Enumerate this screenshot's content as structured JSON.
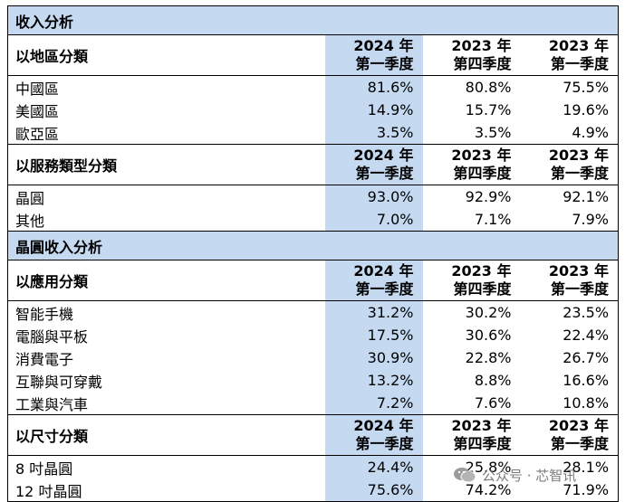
{
  "sections": [
    {
      "title": "收入分析",
      "groups": [
        {
          "label": "以地區分類",
          "col_headers": [
            [
              "2024 年",
              "第一季度"
            ],
            [
              "2023 年",
              "第四季度"
            ],
            [
              "2023 年",
              "第一季度"
            ]
          ],
          "rows": [
            {
              "label": "中國區",
              "values": [
                "81.6%",
                "80.8%",
                "75.5%"
              ]
            },
            {
              "label": "美國區",
              "values": [
                "14.9%",
                "15.7%",
                "19.6%"
              ]
            },
            {
              "label": "歐亞區",
              "values": [
                "3.5%",
                "3.5%",
                "4.9%"
              ]
            }
          ]
        },
        {
          "label": "以服務類型分類",
          "col_headers": [
            [
              "2024 年",
              "第一季度"
            ],
            [
              "2023 年",
              "第四季度"
            ],
            [
              "2023 年",
              "第一季度"
            ]
          ],
          "rows": [
            {
              "label": "晶圓",
              "values": [
                "93.0%",
                "92.9%",
                "92.1%"
              ]
            },
            {
              "label": "其他",
              "values": [
                "7.0%",
                "7.1%",
                "7.9%"
              ]
            }
          ]
        }
      ]
    },
    {
      "title": "晶圓收入分析",
      "groups": [
        {
          "label": "以應用分類",
          "col_headers": [
            [
              "2024 年",
              "第一季度"
            ],
            [
              "2023 年",
              "第四季度"
            ],
            [
              "2023 年",
              "第一季度"
            ]
          ],
          "rows": [
            {
              "label": "智能手機",
              "values": [
                "31.2%",
                "30.2%",
                "23.5%"
              ]
            },
            {
              "label": "電腦與平板",
              "values": [
                "17.5%",
                "30.6%",
                "22.4%"
              ]
            },
            {
              "label": "消費電子",
              "values": [
                "30.9%",
                "22.8%",
                "26.7%"
              ]
            },
            {
              "label": "互聯與可穿戴",
              "values": [
                "13.2%",
                "8.8%",
                "16.6%"
              ]
            },
            {
              "label": "工業與汽車",
              "values": [
                "7.2%",
                "7.6%",
                "10.8%"
              ]
            }
          ]
        },
        {
          "label": "以尺寸分類",
          "col_headers": [
            [
              "2024 年",
              "第一季度"
            ],
            [
              "2023 年",
              "第四季度"
            ],
            [
              "2023 年",
              "第一季度"
            ]
          ],
          "rows": [
            {
              "label": "8 吋晶圓",
              "values": [
                "24.4%",
                "25.8%",
                "28.1%"
              ]
            },
            {
              "label": "12 吋晶圓",
              "values": [
                "75.6%",
                "74.2%",
                "71.9%"
              ]
            }
          ]
        }
      ]
    }
  ],
  "watermark": {
    "text": "公众号 · 芯智讯",
    "icon": "wechat-icon"
  }
}
